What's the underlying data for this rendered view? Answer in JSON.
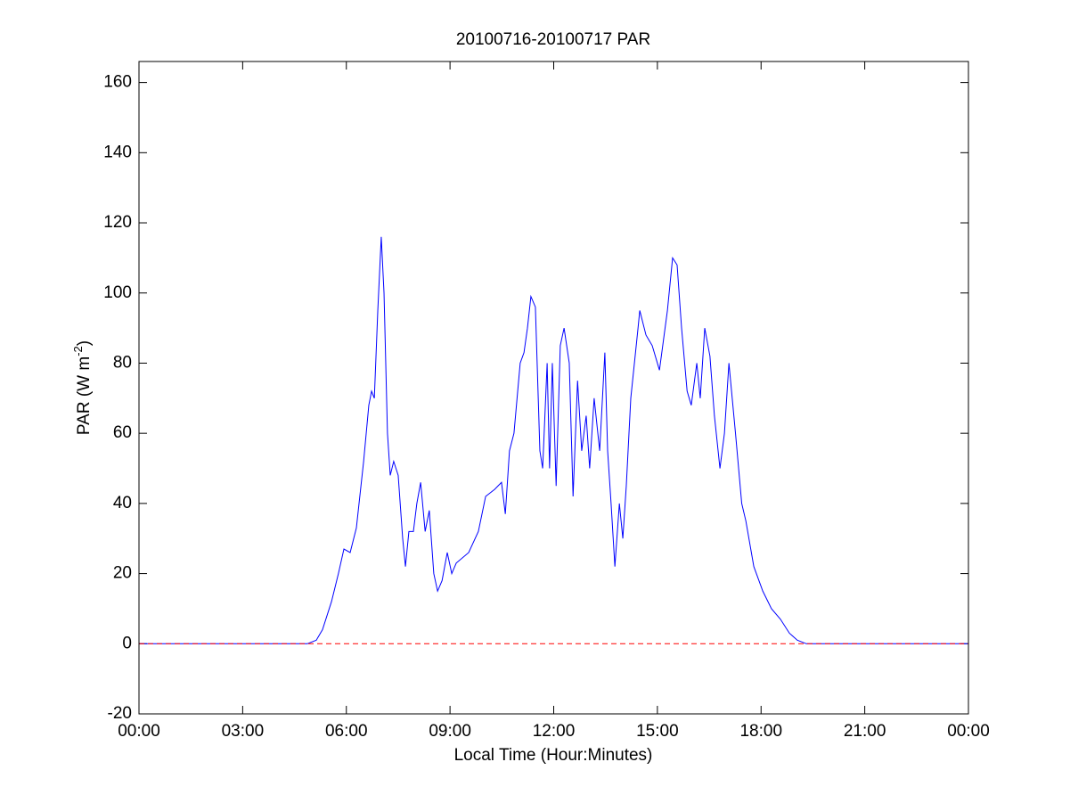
{
  "chart_data": {
    "type": "line",
    "title": "20100716-20100717 PAR",
    "xlabel": "Local Time (Hour:Minutes)",
    "ylabel": {
      "text": "PAR (W m",
      "sup": "-2",
      "end": ")"
    },
    "x": [
      0,
      4.87,
      5.13,
      5.31,
      5.57,
      5.77,
      5.93,
      6.11,
      6.29,
      6.5,
      6.65,
      6.73,
      6.81,
      6.91,
      7.01,
      7.09,
      7.19,
      7.27,
      7.37,
      7.5,
      7.63,
      7.71,
      7.81,
      7.94,
      8.04,
      8.15,
      8.28,
      8.4,
      8.53,
      8.64,
      8.77,
      8.92,
      9.05,
      9.18,
      9.54,
      9.82,
      10.03,
      10.29,
      10.49,
      10.6,
      10.72,
      10.85,
      11.03,
      11.14,
      11.24,
      11.34,
      11.47,
      11.6,
      11.68,
      11.81,
      11.88,
      11.96,
      12.07,
      12.19,
      12.3,
      12.45,
      12.56,
      12.69,
      12.81,
      12.94,
      13.04,
      13.17,
      13.33,
      13.48,
      13.56,
      13.66,
      13.77,
      13.9,
      14.0,
      14.1,
      14.23,
      14.44,
      14.49,
      14.67,
      14.85,
      15.06,
      15.29,
      15.44,
      15.57,
      15.7,
      15.86,
      15.98,
      16.14,
      16.24,
      16.37,
      16.52,
      16.65,
      16.81,
      16.94,
      17.07,
      17.26,
      17.44,
      17.56,
      17.79,
      18.05,
      18.3,
      18.56,
      18.82,
      19.05,
      19.31,
      24
    ],
    "series": [
      {
        "color": "#0000ff",
        "values": [
          0,
          0,
          1,
          4,
          12,
          20,
          27,
          26,
          33,
          52,
          68,
          72,
          70,
          95,
          116,
          100,
          60,
          48,
          52,
          48,
          30,
          22,
          32,
          32,
          40,
          46,
          32,
          38,
          20,
          15,
          18,
          26,
          20,
          23,
          26,
          32,
          42,
          44,
          46,
          37,
          55,
          60,
          80,
          83,
          90,
          99,
          96,
          55,
          50,
          80,
          50,
          80,
          45,
          85,
          90,
          80,
          42,
          75,
          55,
          65,
          50,
          70,
          55,
          83,
          55,
          40,
          22,
          40,
          30,
          45,
          70,
          90,
          95,
          88,
          85,
          78,
          95,
          110,
          108,
          90,
          72,
          68,
          80,
          70,
          90,
          82,
          65,
          50,
          60,
          80,
          60,
          40,
          35,
          22,
          15,
          10,
          7,
          3,
          1,
          0,
          0
        ]
      }
    ],
    "reference_line": {
      "value": 0,
      "color": "#ff0000",
      "dashed": true
    },
    "xlim": [
      0,
      24
    ],
    "xticks": [
      {
        "value": 0,
        "label": "00:00"
      },
      {
        "value": 3,
        "label": "03:00"
      },
      {
        "value": 6,
        "label": "06:00"
      },
      {
        "value": 9,
        "label": "09:00"
      },
      {
        "value": 12,
        "label": "12:00"
      },
      {
        "value": 15,
        "label": "15:00"
      },
      {
        "value": 18,
        "label": "18:00"
      },
      {
        "value": 21,
        "label": "21:00"
      },
      {
        "value": 24,
        "label": "00:00"
      }
    ],
    "ylim": [
      -20,
      166
    ],
    "yticks": [
      -20,
      0,
      20,
      40,
      60,
      80,
      100,
      120,
      140,
      160
    ],
    "grid": false
  }
}
